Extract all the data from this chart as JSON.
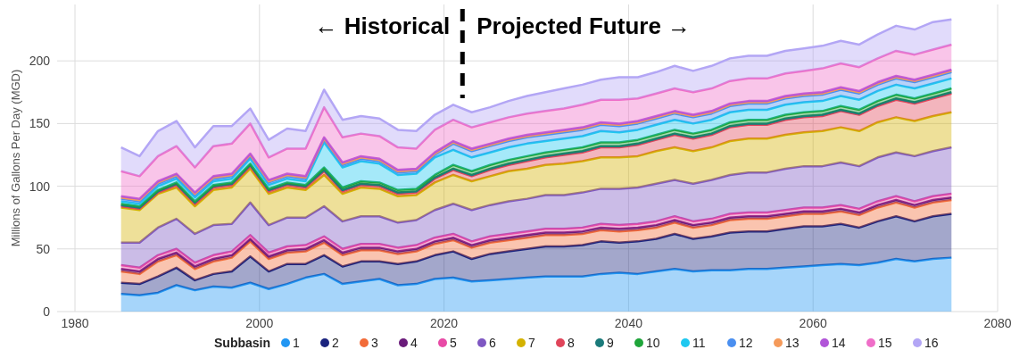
{
  "chart_data": {
    "type": "area",
    "stacked": true,
    "ylabel": "Millions of Gallons Per Day (MGD)",
    "legend_title": "Subbasin",
    "legend": "bottom",
    "grid": true,
    "annotations": [
      "← Historical",
      "Projected Future →"
    ],
    "ref_lines": [
      {
        "axis": "x",
        "value": 2022,
        "line_style": "dashed",
        "color": "#000000"
      }
    ],
    "xlim": [
      1980,
      2080
    ],
    "xticks": [
      1980,
      2000,
      2020,
      2040,
      2060,
      2080
    ],
    "ylim": [
      0,
      245
    ],
    "yticks": [
      0,
      50,
      100,
      150,
      200
    ],
    "x": [
      1985,
      1987,
      1989,
      1991,
      1993,
      1995,
      1997,
      1999,
      2001,
      2003,
      2005,
      2007,
      2009,
      2011,
      2013,
      2015,
      2017,
      2019,
      2021,
      2023,
      2025,
      2027,
      2029,
      2031,
      2033,
      2035,
      2037,
      2039,
      2041,
      2043,
      2045,
      2047,
      2049,
      2051,
      2053,
      2055,
      2057,
      2059,
      2061,
      2063,
      2065,
      2067,
      2069,
      2071,
      2073,
      2075
    ],
    "series": [
      {
        "name": "1",
        "color": "#2196f3",
        "values": [
          14,
          13,
          15,
          21,
          17,
          20,
          19,
          23,
          18,
          22,
          27,
          30,
          22,
          24,
          26,
          21,
          22,
          26,
          27,
          24,
          25,
          26,
          27,
          28,
          28,
          28,
          30,
          31,
          30,
          32,
          34,
          32,
          33,
          33,
          34,
          34,
          35,
          36,
          37,
          38,
          37,
          39,
          42,
          40,
          42,
          43
        ]
      },
      {
        "name": "2",
        "color": "#1a237e",
        "values": [
          9,
          9,
          13,
          14,
          8,
          10,
          13,
          21,
          14,
          16,
          11,
          15,
          14,
          16,
          14,
          17,
          18,
          19,
          21,
          18,
          21,
          22,
          23,
          24,
          24,
          25,
          26,
          24,
          26,
          26,
          28,
          26,
          27,
          30,
          30,
          30,
          31,
          32,
          31,
          32,
          30,
          33,
          34,
          32,
          34,
          35
        ]
      },
      {
        "name": "3",
        "color": "#f26b38",
        "values": [
          9,
          8,
          12,
          10,
          9,
          10,
          11,
          12,
          10,
          9,
          10,
          10,
          9,
          9,
          9,
          8,
          8,
          9,
          9,
          9,
          9,
          9,
          9,
          9,
          9,
          9,
          9,
          9,
          9,
          9,
          9,
          9,
          9,
          10,
          10,
          10,
          10,
          10,
          10,
          10,
          10,
          11,
          11,
          11,
          11,
          11
        ]
      },
      {
        "name": "4",
        "color": "#6a1b7a",
        "values": [
          2,
          2,
          2,
          2,
          2,
          2,
          2,
          2,
          2,
          2,
          2,
          2,
          2,
          2,
          2,
          2,
          2,
          2,
          2,
          2,
          2,
          2,
          2,
          2,
          2,
          2,
          2,
          2,
          2,
          2,
          2,
          2,
          2,
          2,
          2,
          2,
          2,
          2,
          2,
          2,
          2,
          2,
          2,
          2,
          2,
          2
        ]
      },
      {
        "name": "5",
        "color": "#e84aa6",
        "values": [
          3,
          3,
          3,
          3,
          3,
          3,
          3,
          3,
          3,
          3,
          3,
          3,
          3,
          3,
          3,
          3,
          3,
          3,
          3,
          3,
          3,
          3,
          3,
          3,
          3,
          3,
          3,
          3,
          3,
          3,
          3,
          3,
          3,
          3,
          3,
          3,
          3,
          3,
          3,
          3,
          3,
          3,
          3,
          3,
          3,
          3
        ]
      },
      {
        "name": "6",
        "color": "#7e57c2",
        "values": [
          18,
          20,
          22,
          24,
          23,
          24,
          22,
          26,
          22,
          23,
          22,
          24,
          22,
          22,
          22,
          20,
          20,
          22,
          24,
          25,
          25,
          26,
          26,
          27,
          27,
          28,
          28,
          29,
          29,
          30,
          29,
          30,
          31,
          31,
          32,
          32,
          33,
          33,
          33,
          34,
          34,
          35,
          35,
          36,
          36,
          37
        ]
      },
      {
        "name": "7",
        "color": "#d4b200",
        "values": [
          28,
          26,
          27,
          25,
          22,
          28,
          29,
          27,
          25,
          24,
          22,
          25,
          22,
          23,
          22,
          21,
          20,
          22,
          23,
          23,
          23,
          24,
          24,
          24,
          25,
          25,
          25,
          25,
          25,
          26,
          26,
          26,
          26,
          27,
          27,
          27,
          27,
          27,
          28,
          28,
          28,
          28,
          28,
          28,
          28,
          28
        ]
      },
      {
        "name": "8",
        "color": "#e0455a",
        "values": [
          1,
          1,
          1,
          2,
          2,
          2,
          2,
          2,
          2,
          2,
          2,
          3,
          2,
          2,
          2,
          2,
          2,
          3,
          4,
          4,
          5,
          5,
          6,
          6,
          7,
          7,
          8,
          8,
          9,
          9,
          10,
          10,
          10,
          11,
          11,
          11,
          12,
          12,
          12,
          13,
          13,
          13,
          14,
          14,
          14,
          15
        ]
      },
      {
        "name": "9",
        "color": "#1b7a7a",
        "values": [
          1,
          1,
          1,
          1,
          1,
          1,
          1,
          1,
          1,
          1,
          1,
          1,
          1,
          1,
          1,
          1,
          1,
          1,
          1,
          1,
          1,
          1,
          1,
          1,
          1,
          1,
          1,
          1,
          1,
          1,
          1,
          1,
          1,
          1,
          1,
          1,
          1,
          1,
          1,
          1,
          1,
          1,
          1,
          1,
          1,
          1
        ]
      },
      {
        "name": "10",
        "color": "#1fa53a",
        "values": [
          1,
          1,
          1,
          1,
          1,
          1,
          1,
          1,
          1,
          1,
          1,
          2,
          2,
          2,
          2,
          2,
          2,
          2,
          3,
          3,
          3,
          3,
          3,
          3,
          3,
          3,
          3,
          3,
          3,
          3,
          3,
          3,
          3,
          3,
          3,
          3,
          3,
          3,
          3,
          3,
          3,
          3,
          3,
          3,
          3,
          3
        ]
      },
      {
        "name": "11",
        "color": "#1ec8f0",
        "values": [
          2,
          2,
          3,
          3,
          3,
          3,
          3,
          4,
          3,
          3,
          3,
          20,
          16,
          16,
          15,
          12,
          12,
          14,
          12,
          11,
          10,
          10,
          10,
          9,
          9,
          9,
          9,
          8,
          8,
          8,
          8,
          8,
          8,
          8,
          8,
          8,
          8,
          8,
          8,
          8,
          8,
          8,
          8,
          8,
          8,
          8
        ]
      },
      {
        "name": "12",
        "color": "#4a8ff0",
        "values": [
          2,
          2,
          2,
          2,
          2,
          2,
          2,
          2,
          2,
          2,
          2,
          2,
          2,
          2,
          2,
          2,
          2,
          2,
          5,
          5,
          5,
          5,
          5,
          5,
          5,
          5,
          5,
          5,
          5,
          5,
          5,
          5,
          5,
          5,
          5,
          5,
          5,
          5,
          5,
          5,
          5,
          5,
          5,
          5,
          5,
          5
        ]
      },
      {
        "name": "13",
        "color": "#f59a5a",
        "values": [
          1,
          1,
          1,
          1,
          1,
          1,
          1,
          1,
          1,
          1,
          1,
          1,
          1,
          1,
          1,
          1,
          1,
          1,
          1,
          1,
          1,
          1,
          1,
          1,
          1,
          1,
          1,
          1,
          1,
          1,
          1,
          1,
          1,
          1,
          1,
          1,
          1,
          1,
          1,
          1,
          1,
          1,
          1,
          1,
          1,
          1
        ]
      },
      {
        "name": "14",
        "color": "#b155d8",
        "values": [
          1,
          1,
          1,
          1,
          1,
          1,
          1,
          1,
          1,
          1,
          1,
          1,
          1,
          1,
          1,
          1,
          1,
          1,
          1,
          1,
          1,
          1,
          1,
          1,
          1,
          1,
          1,
          1,
          1,
          1,
          1,
          1,
          1,
          1,
          1,
          1,
          1,
          1,
          1,
          1,
          1,
          1,
          1,
          1,
          1,
          1
        ]
      },
      {
        "name": "15",
        "color": "#ef6ec8",
        "values": [
          20,
          18,
          20,
          22,
          20,
          24,
          24,
          24,
          18,
          20,
          22,
          24,
          20,
          18,
          18,
          18,
          16,
          18,
          17,
          17,
          17,
          17,
          17,
          17,
          17,
          18,
          18,
          19,
          18,
          18,
          18,
          18,
          18,
          18,
          18,
          18,
          18,
          18,
          19,
          19,
          19,
          19,
          20,
          20,
          20,
          20
        ]
      },
      {
        "name": "16",
        "color": "#b3a6f5",
        "values": [
          19,
          16,
          20,
          20,
          16,
          16,
          14,
          12,
          14,
          16,
          14,
          14,
          14,
          14,
          14,
          14,
          14,
          12,
          12,
          12,
          12,
          13,
          14,
          15,
          16,
          16,
          16,
          18,
          17,
          17,
          18,
          17,
          18,
          18,
          18,
          18,
          18,
          18,
          18,
          18,
          18,
          19,
          20,
          20,
          22,
          20
        ]
      }
    ]
  }
}
